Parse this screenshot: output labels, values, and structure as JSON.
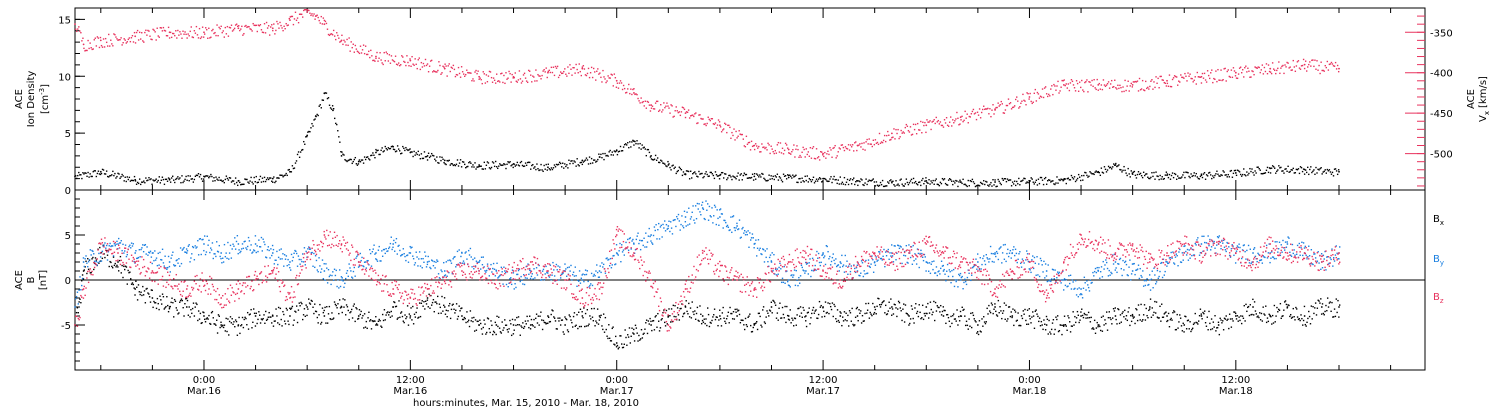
{
  "colors": {
    "black": "#000000",
    "pink": "#e8335e",
    "blue": "#1a7fe0"
  },
  "x_axis": {
    "caption": "hours:minutes, Mar. 15, 2010 - Mar. 18, 2010",
    "ticks": [
      {
        "time": "0:00",
        "date": "Mar.16",
        "hours": 24
      },
      {
        "time": "12:00",
        "date": "Mar.16",
        "hours": 36
      },
      {
        "time": "0:00",
        "date": "Mar.17",
        "hours": 48
      },
      {
        "time": "12:00",
        "date": "Mar.17",
        "hours": 60
      },
      {
        "time": "0:00",
        "date": "Mar.18",
        "hours": 72
      },
      {
        "time": "12:00",
        "date": "Mar.18",
        "hours": 84
      }
    ],
    "range_hours": [
      16.5,
      95
    ]
  },
  "chart_data": [
    {
      "type": "scatter",
      "panel": "top",
      "ylabel_left": {
        "line1": "ACE",
        "line2": "Ion Density",
        "unit": "[cm",
        "unit_exp": "-3",
        "unit_end": "]"
      },
      "ylabel_right": {
        "line1": "ACE",
        "main": "V",
        "sub": "x",
        "unit": "[km/s]"
      },
      "y_left": {
        "ylim": [
          0,
          16
        ],
        "ticks": [
          "0",
          "5",
          "10",
          "15"
        ]
      },
      "y_right": {
        "ylim": [
          -545,
          -320
        ],
        "ticks": [
          "-350",
          "-400",
          "-450",
          "-500"
        ]
      },
      "series": [
        {
          "color": "#000000",
          "axis": "left",
          "x": [
            16.5,
            18,
            20,
            22,
            24,
            26,
            28,
            29,
            30,
            30.5,
            31,
            31.5,
            32,
            33,
            34,
            35,
            36,
            37,
            38,
            40,
            42,
            44,
            46,
            47,
            48,
            49,
            50,
            51,
            52,
            54,
            56,
            58,
            60,
            62,
            64,
            66,
            68,
            70,
            72,
            74,
            76,
            77,
            78,
            80,
            82,
            84,
            86,
            88,
            90
          ],
          "y": [
            1.2,
            1.6,
            0.9,
            0.9,
            1.2,
            0.8,
            1.0,
            1.6,
            4.8,
            6.5,
            8.5,
            7.0,
            3.0,
            2.5,
            3.3,
            3.8,
            3.3,
            3.0,
            2.6,
            2.2,
            2.3,
            2.0,
            2.6,
            2.9,
            3.5,
            4.3,
            3.0,
            2.2,
            1.4,
            1.3,
            1.2,
            1.1,
            1.0,
            0.8,
            0.7,
            0.8,
            0.7,
            0.7,
            0.8,
            0.9,
            1.6,
            2.2,
            1.4,
            1.3,
            1.3,
            1.5,
            1.9,
            1.8,
            1.6
          ]
        },
        {
          "color": "#e8335e",
          "axis": "right",
          "x": [
            16.5,
            17,
            18,
            20,
            22,
            24,
            26,
            28,
            29,
            30,
            30.5,
            31,
            32,
            34,
            36,
            38,
            40,
            42,
            44,
            46,
            48,
            49,
            50,
            52,
            54,
            56,
            58,
            60,
            62,
            64,
            66,
            68,
            70,
            72,
            74,
            76,
            78,
            80,
            82,
            84,
            86,
            88,
            90
          ],
          "y": [
            -340,
            -365,
            -360,
            -355,
            -350,
            -350,
            -345,
            -345,
            -335,
            -325,
            -330,
            -340,
            -360,
            -380,
            -385,
            -395,
            -405,
            -405,
            -400,
            -395,
            -410,
            -425,
            -440,
            -450,
            -465,
            -490,
            -495,
            -500,
            -490,
            -475,
            -465,
            -455,
            -445,
            -430,
            -415,
            -415,
            -415,
            -410,
            -405,
            -400,
            -395,
            -390,
            -395
          ]
        }
      ]
    },
    {
      "type": "scatter",
      "panel": "bottom",
      "ylabel": {
        "line1": "ACE",
        "main": "B",
        "unit": "[nT]"
      },
      "ylim": [
        -10,
        10
      ],
      "yticks": [
        "-5",
        "0",
        "5"
      ],
      "series": [
        {
          "color": "#000000",
          "legend": {
            "main": "B",
            "sub": "x"
          },
          "x": [
            16.5,
            17,
            18,
            19,
            20,
            21,
            22,
            23,
            24,
            25,
            26,
            27,
            28,
            29,
            30,
            31,
            32,
            33,
            34,
            35,
            36,
            37,
            38,
            39,
            40,
            41,
            42,
            43,
            44,
            45,
            46,
            47,
            48,
            49,
            50,
            51,
            52,
            53,
            54,
            55,
            56,
            57,
            58,
            59,
            60,
            61,
            62,
            63,
            64,
            65,
            66,
            67,
            68,
            69,
            70,
            71,
            72,
            73,
            74,
            75,
            76,
            77,
            78,
            79,
            80,
            81,
            82,
            83,
            84,
            85,
            86,
            87,
            88,
            89,
            90
          ],
          "y": [
            -5,
            1,
            3,
            2,
            -1,
            -2,
            -3,
            -3,
            -4,
            -5,
            -5,
            -4,
            -4,
            -4,
            -3,
            -4,
            -3,
            -4,
            -5,
            -3,
            -4,
            -2,
            -3,
            -4,
            -5,
            -5,
            -5,
            -5,
            -4,
            -5,
            -4,
            -4,
            -7,
            -6,
            -5,
            -4,
            -3,
            -4,
            -4,
            -4,
            -5,
            -3,
            -4,
            -4,
            -3,
            -4,
            -4,
            -3,
            -3,
            -4,
            -3,
            -4,
            -4,
            -5,
            -3,
            -4,
            -4,
            -5,
            -5,
            -4,
            -5,
            -4,
            -4,
            -3,
            -4,
            -5,
            -4,
            -5,
            -4,
            -3,
            -4,
            -3,
            -4,
            -3,
            -3
          ]
        },
        {
          "color": "#1a7fe0",
          "legend": {
            "main": "B",
            "sub": "y"
          },
          "x": [
            16.5,
            17,
            18,
            19,
            20,
            21,
            22,
            23,
            24,
            25,
            26,
            27,
            28,
            29,
            30,
            31,
            32,
            33,
            34,
            35,
            36,
            37,
            38,
            39,
            40,
            41,
            42,
            43,
            44,
            45,
            46,
            47,
            48,
            49,
            50,
            51,
            52,
            53,
            54,
            55,
            56,
            57,
            58,
            59,
            60,
            61,
            62,
            63,
            64,
            65,
            66,
            67,
            68,
            69,
            70,
            71,
            72,
            73,
            74,
            75,
            76,
            77,
            78,
            79,
            80,
            81,
            82,
            83,
            84,
            85,
            86,
            87,
            88,
            89,
            90
          ],
          "y": [
            -3,
            2,
            3,
            4,
            3,
            3,
            2,
            3,
            4,
            3,
            4,
            4,
            3,
            2,
            3,
            1,
            0,
            2,
            3,
            4,
            3,
            2,
            1,
            3,
            2,
            1,
            0,
            1,
            1,
            1,
            0,
            1,
            3,
            4,
            5,
            6,
            7,
            8,
            7,
            6,
            4,
            2,
            0,
            1,
            3,
            2,
            1,
            2,
            3,
            3,
            2,
            1,
            0,
            2,
            3,
            3,
            2,
            1,
            0,
            -1,
            1,
            2,
            1,
            0,
            2,
            3,
            4,
            4,
            3,
            3,
            3,
            4,
            3,
            2,
            3
          ]
        },
        {
          "color": "#e8335e",
          "legend": {
            "main": "B",
            "sub": "z"
          },
          "x": [
            16.5,
            17,
            18,
            19,
            20,
            21,
            22,
            23,
            24,
            25,
            26,
            27,
            28,
            29,
            30,
            31,
            32,
            33,
            34,
            35,
            36,
            37,
            38,
            39,
            40,
            41,
            42,
            43,
            44,
            45,
            46,
            47,
            48,
            49,
            50,
            51,
            52,
            53,
            54,
            55,
            56,
            57,
            58,
            59,
            60,
            61,
            62,
            63,
            64,
            65,
            66,
            67,
            68,
            69,
            70,
            71,
            72,
            73,
            74,
            75,
            76,
            77,
            78,
            79,
            80,
            81,
            82,
            83,
            84,
            85,
            86,
            87,
            88,
            89,
            90
          ],
          "y": [
            -5,
            -1,
            4,
            3,
            2,
            1,
            0,
            -1,
            0,
            -2,
            -1,
            0,
            1,
            -2,
            3,
            5,
            4,
            2,
            0,
            -1,
            -2,
            -1,
            0,
            1,
            1,
            0,
            1,
            2,
            1,
            0,
            -2,
            -1,
            5,
            3,
            0,
            -5,
            -1,
            3,
            1,
            0,
            -1,
            1,
            2,
            3,
            1,
            0,
            2,
            3,
            2,
            3,
            4,
            3,
            2,
            1,
            -1,
            1,
            2,
            -2,
            2,
            5,
            4,
            3,
            4,
            2,
            3,
            4,
            3,
            4,
            3,
            2,
            4,
            3,
            3,
            2,
            3
          ]
        }
      ]
    }
  ]
}
